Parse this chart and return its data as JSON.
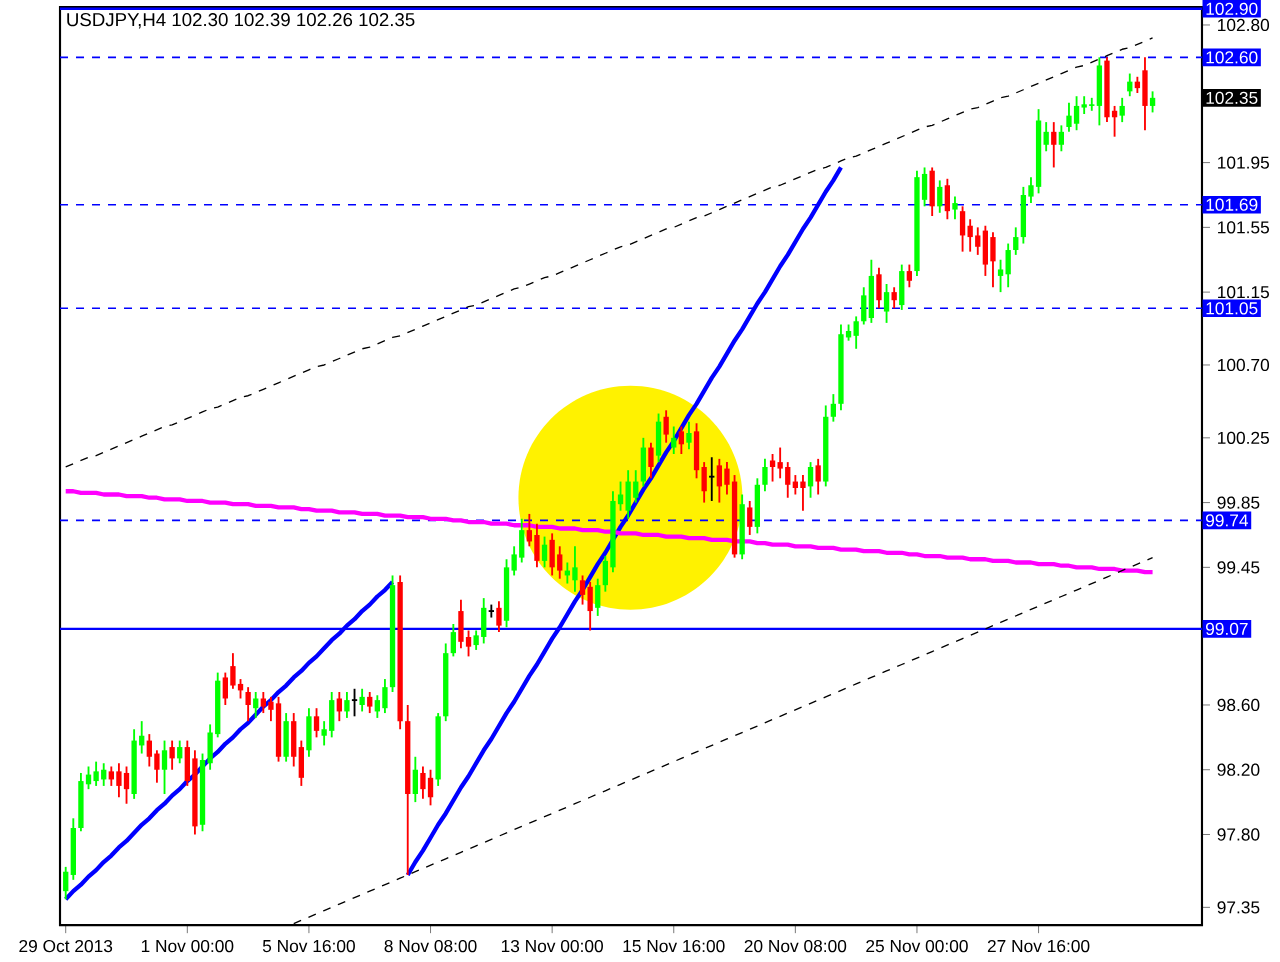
{
  "chart_data": {
    "type": "candlestick",
    "title": "USDJPY,H4 102.30 102.39 102.26 102.35",
    "ylim": [
      97.24,
      102.91
    ],
    "categories": [
      "29 Oct 2013",
      null,
      null,
      null,
      null,
      null,
      null,
      null,
      null,
      null,
      null,
      null,
      null,
      null,
      null,
      null,
      "1 Nov 00:00",
      null,
      null,
      null,
      null,
      null,
      null,
      null,
      null,
      null,
      null,
      null,
      null,
      null,
      null,
      null,
      "5 Nov 16:00",
      null,
      null,
      null,
      null,
      null,
      null,
      null,
      null,
      null,
      null,
      null,
      null,
      null,
      null,
      null,
      "8 Nov 08:00",
      null,
      null,
      null,
      null,
      null,
      null,
      null,
      null,
      null,
      null,
      null,
      null,
      null,
      null,
      null,
      "13 Nov 00:00",
      null,
      null,
      null,
      null,
      null,
      null,
      null,
      null,
      null,
      null,
      null,
      null,
      null,
      null,
      null,
      "15 Nov 16:00",
      null,
      null,
      null,
      null,
      null,
      null,
      null,
      null,
      null,
      null,
      null,
      null,
      null,
      null,
      null,
      "20 Nov 08:00",
      null,
      null,
      null,
      null,
      null,
      null,
      null,
      null,
      null,
      null,
      null,
      null,
      null,
      null,
      null,
      "25 Nov 00:00",
      null,
      null,
      null,
      null,
      null,
      null,
      null,
      null,
      null,
      null,
      null,
      null,
      null,
      null,
      null,
      "27 Nov 16:00",
      null,
      null,
      null,
      null,
      null,
      null,
      null,
      null,
      null,
      null,
      null,
      null,
      null,
      null,
      null
    ],
    "yticks": [
      97.35,
      {
        "value": 97.8,
        "label": "97.80"
      },
      {
        "value": 98.2,
        "label": "98.20"
      },
      {
        "value": 98.6,
        "label": "98.60"
      },
      99.45,
      99.85,
      100.25,
      {
        "value": 100.7,
        "label": "100.70"
      },
      101.15,
      101.55,
      101.95,
      {
        "value": 102.8,
        "label": "102.80"
      }
    ],
    "annotations": [
      "102.35"
    ],
    "ohlc": [
      [
        97.45,
        97.6,
        97.4,
        97.57
      ],
      [
        97.55,
        97.9,
        97.52,
        97.84
      ],
      [
        97.84,
        98.18,
        97.82,
        98.13
      ],
      [
        98.11,
        98.22,
        98.08,
        98.17
      ],
      [
        98.13,
        98.25,
        98.1,
        98.19
      ],
      [
        98.14,
        98.24,
        98.1,
        98.2
      ],
      [
        98.19,
        98.22,
        98.1,
        98.14
      ],
      [
        98.19,
        98.24,
        98.03,
        98.1
      ],
      [
        98.18,
        98.22,
        97.99,
        98.08
      ],
      [
        98.05,
        98.45,
        98.02,
        98.38
      ],
      [
        98.35,
        98.5,
        98.3,
        98.41
      ],
      [
        98.38,
        98.42,
        98.22,
        98.28
      ],
      [
        98.3,
        98.32,
        98.12,
        98.2
      ],
      [
        98.2,
        98.38,
        98.05,
        98.32
      ],
      [
        98.34,
        98.38,
        98.2,
        98.27
      ],
      [
        98.27,
        98.38,
        98.24,
        98.34
      ],
      [
        98.34,
        98.38,
        98.1,
        98.13
      ],
      [
        98.27,
        98.32,
        97.8,
        97.85
      ],
      [
        97.86,
        98.3,
        97.82,
        98.26
      ],
      [
        98.24,
        98.48,
        98.2,
        98.43
      ],
      [
        98.42,
        98.8,
        98.4,
        98.75
      ],
      [
        98.77,
        98.8,
        98.6,
        98.64
      ],
      [
        98.84,
        98.92,
        98.7,
        98.72
      ],
      [
        98.73,
        98.76,
        98.64,
        98.69
      ],
      [
        98.68,
        98.71,
        98.5,
        98.6
      ],
      [
        98.58,
        98.68,
        98.52,
        98.64
      ],
      [
        98.64,
        98.68,
        98.55,
        98.59
      ],
      [
        98.62,
        98.65,
        98.5,
        98.57
      ],
      [
        98.61,
        98.65,
        98.25,
        98.28
      ],
      [
        98.28,
        98.55,
        98.25,
        98.5
      ],
      [
        98.5,
        98.55,
        98.22,
        98.28
      ],
      [
        98.34,
        98.38,
        98.1,
        98.15
      ],
      [
        98.32,
        98.58,
        98.28,
        98.53
      ],
      [
        98.53,
        98.58,
        98.4,
        98.44
      ],
      [
        98.41,
        98.5,
        98.35,
        98.45
      ],
      [
        98.44,
        98.68,
        98.4,
        98.63
      ],
      [
        98.64,
        98.68,
        98.5,
        98.56
      ],
      [
        98.56,
        98.68,
        98.52,
        98.63
      ],
      [
        98.63,
        98.7,
        98.53,
        98.63
      ],
      [
        98.6,
        98.7,
        98.56,
        98.65
      ],
      [
        98.65,
        98.68,
        98.55,
        98.59
      ],
      [
        98.56,
        98.66,
        98.52,
        98.63
      ],
      [
        98.58,
        98.76,
        98.55,
        98.71
      ],
      [
        98.71,
        99.4,
        98.68,
        99.34
      ],
      [
        99.36,
        99.4,
        98.45,
        98.5
      ],
      [
        98.5,
        98.6,
        97.55,
        98.05
      ],
      [
        98.05,
        98.28,
        98.0,
        98.2
      ],
      [
        98.18,
        98.22,
        98.02,
        98.08
      ],
      [
        98.15,
        98.2,
        97.98,
        98.03
      ],
      [
        98.14,
        98.55,
        98.1,
        98.53
      ],
      [
        98.53,
        98.98,
        98.5,
        98.92
      ],
      [
        98.92,
        99.1,
        98.9,
        99.05
      ],
      [
        99.18,
        99.25,
        98.95,
        98.99
      ],
      [
        99.02,
        99.06,
        98.9,
        98.96
      ],
      [
        98.97,
        99.06,
        98.94,
        99.03
      ],
      [
        99.02,
        99.26,
        98.98,
        99.2
      ],
      [
        99.18,
        99.22,
        99.14,
        99.18
      ],
      [
        99.2,
        99.24,
        99.05,
        99.09
      ],
      [
        99.12,
        99.5,
        99.08,
        99.45
      ],
      [
        99.43,
        99.58,
        99.4,
        99.53
      ],
      [
        99.51,
        99.75,
        99.48,
        99.68
      ],
      [
        99.68,
        99.78,
        99.58,
        99.61
      ],
      [
        99.65,
        99.72,
        99.45,
        99.49
      ],
      [
        99.49,
        99.64,
        99.45,
        99.59
      ],
      [
        99.62,
        99.66,
        99.4,
        99.45
      ],
      [
        99.53,
        99.58,
        99.38,
        99.43
      ],
      [
        99.4,
        99.48,
        99.35,
        99.43
      ],
      [
        99.37,
        99.58,
        99.3,
        99.45
      ],
      [
        99.37,
        99.4,
        99.22,
        99.28
      ],
      [
        99.33,
        99.36,
        99.06,
        99.18
      ],
      [
        99.2,
        99.38,
        99.15,
        99.34
      ],
      [
        99.34,
        99.52,
        99.3,
        99.49
      ],
      [
        99.45,
        99.92,
        99.42,
        99.86
      ],
      [
        99.84,
        99.98,
        99.8,
        99.9
      ],
      [
        99.8,
        100.05,
        99.75,
        99.98
      ],
      [
        99.88,
        100.05,
        99.85,
        99.98
      ],
      [
        99.98,
        100.25,
        99.95,
        100.19
      ],
      [
        100.19,
        100.22,
        100.0,
        100.07
      ],
      [
        100.14,
        100.4,
        100.1,
        100.35
      ],
      [
        100.38,
        100.42,
        100.22,
        100.27
      ],
      [
        100.19,
        100.32,
        100.15,
        100.25
      ],
      [
        100.29,
        100.32,
        100.15,
        100.21
      ],
      [
        100.22,
        100.35,
        100.18,
        100.28
      ],
      [
        100.29,
        100.34,
        100.0,
        100.05
      ],
      [
        100.07,
        100.1,
        99.85,
        99.92
      ],
      [
        100.01,
        100.13,
        99.86,
        100.01
      ],
      [
        100.08,
        100.12,
        99.85,
        99.95
      ],
      [
        100.06,
        100.1,
        99.9,
        99.96
      ],
      [
        99.98,
        100.02,
        99.51,
        99.53
      ],
      [
        99.53,
        99.9,
        99.5,
        99.84
      ],
      [
        99.82,
        99.86,
        99.65,
        99.7
      ],
      [
        99.7,
        100.0,
        99.66,
        99.96
      ],
      [
        99.96,
        100.12,
        99.92,
        100.07
      ],
      [
        100.11,
        100.15,
        99.98,
        100.07
      ],
      [
        100.1,
        100.19,
        100.0,
        100.06
      ],
      [
        100.07,
        100.1,
        99.88,
        99.96
      ],
      [
        99.98,
        100.02,
        99.9,
        99.94
      ],
      [
        99.98,
        100.02,
        99.8,
        99.94
      ],
      [
        99.95,
        100.1,
        99.88,
        100.07
      ],
      [
        100.08,
        100.12,
        99.9,
        99.98
      ],
      [
        99.98,
        100.45,
        99.95,
        100.38
      ],
      [
        100.38,
        100.52,
        100.35,
        100.46
      ],
      [
        100.46,
        100.95,
        100.42,
        100.89
      ],
      [
        100.87,
        100.95,
        100.85,
        100.91
      ],
      [
        100.88,
        101.0,
        100.8,
        100.97
      ],
      [
        100.97,
        101.18,
        100.95,
        101.13
      ],
      [
        100.99,
        101.35,
        100.96,
        101.25
      ],
      [
        101.26,
        101.3,
        101.05,
        101.1
      ],
      [
        101.03,
        101.2,
        100.96,
        101.15
      ],
      [
        101.15,
        101.18,
        101.05,
        101.1
      ],
      [
        101.07,
        101.32,
        101.04,
        101.28
      ],
      [
        101.28,
        101.32,
        101.18,
        101.22
      ],
      [
        101.28,
        101.9,
        101.25,
        101.86
      ],
      [
        101.72,
        101.92,
        101.68,
        101.88
      ],
      [
        101.9,
        101.92,
        101.62,
        101.68
      ],
      [
        101.68,
        101.84,
        101.64,
        101.8
      ],
      [
        101.81,
        101.85,
        101.6,
        101.65
      ],
      [
        101.66,
        101.74,
        101.6,
        101.7
      ],
      [
        101.65,
        101.68,
        101.4,
        101.5
      ],
      [
        101.56,
        101.6,
        101.4,
        101.49
      ],
      [
        101.5,
        101.55,
        101.38,
        101.43
      ],
      [
        101.53,
        101.56,
        101.25,
        101.32
      ],
      [
        101.49,
        101.52,
        101.18,
        101.34
      ],
      [
        101.25,
        101.35,
        101.15,
        101.29
      ],
      [
        101.26,
        101.45,
        101.18,
        101.41
      ],
      [
        101.41,
        101.55,
        101.38,
        101.49
      ],
      [
        101.49,
        101.8,
        101.45,
        101.75
      ],
      [
        101.74,
        101.86,
        101.7,
        101.81
      ],
      [
        101.8,
        102.28,
        101.76,
        102.21
      ],
      [
        102.06,
        102.2,
        102.02,
        102.14
      ],
      [
        102.14,
        102.2,
        101.92,
        102.06
      ],
      [
        102.06,
        102.18,
        102.02,
        102.14
      ],
      [
        102.17,
        102.32,
        102.14,
        102.24
      ],
      [
        102.19,
        102.36,
        102.15,
        102.3
      ],
      [
        102.29,
        102.36,
        102.25,
        102.31
      ],
      [
        102.3,
        102.35,
        102.27,
        102.31
      ],
      [
        102.3,
        102.6,
        102.18,
        102.55
      ],
      [
        102.58,
        102.6,
        102.2,
        102.23
      ],
      [
        102.27,
        102.3,
        102.11,
        102.23
      ],
      [
        102.24,
        102.35,
        102.2,
        102.3
      ],
      [
        102.39,
        102.5,
        102.36,
        102.45
      ],
      [
        102.45,
        102.48,
        102.38,
        102.41
      ],
      [
        102.52,
        102.6,
        102.15,
        102.3
      ],
      [
        102.3,
        102.39,
        102.26,
        102.35
      ]
    ],
    "series": [
      {
        "type": "line",
        "color": "#0000ff",
        "line_style": "solid",
        "values": [
          97.4,
          97.45,
          97.49,
          97.54,
          97.58,
          97.63,
          97.67,
          97.72,
          97.76,
          97.81,
          97.86,
          97.9,
          97.95,
          97.99,
          98.04,
          98.08,
          98.13,
          98.17,
          98.22,
          98.27,
          98.31,
          98.36,
          98.4,
          98.45,
          98.49,
          98.54,
          98.59,
          98.63,
          98.68,
          98.72,
          98.77,
          98.81,
          98.86,
          98.9,
          98.95,
          99.0,
          99.04,
          99.09,
          99.13,
          99.18,
          99.22,
          99.27,
          99.31,
          99.36,
          null,
          null,
          null,
          null,
          null,
          null,
          null,
          null,
          null,
          null,
          null,
          null,
          null,
          null,
          null,
          null,
          null,
          null,
          null,
          null,
          null,
          null,
          null,
          null,
          null,
          null,
          null,
          null,
          null,
          null,
          null,
          null,
          null,
          null,
          null,
          null,
          null,
          null,
          null,
          null,
          null,
          null,
          null,
          null,
          null,
          null,
          null,
          null,
          null,
          null,
          null,
          null,
          null,
          null,
          null,
          null,
          null,
          null,
          null,
          null,
          null,
          null,
          null,
          null,
          null,
          null,
          null,
          null,
          null,
          null,
          null,
          null,
          null,
          null,
          null,
          null,
          null,
          null,
          null,
          null,
          null,
          null,
          null,
          null,
          null,
          null,
          null,
          null,
          null,
          null,
          null,
          null,
          null,
          null,
          null,
          null,
          null,
          null,
          null,
          null
        ]
      },
      {
        "type": "line",
        "color": "#0000ff",
        "line_style": "solid",
        "values": [
          null,
          null,
          null,
          null,
          null,
          null,
          null,
          null,
          null,
          null,
          null,
          null,
          null,
          null,
          null,
          null,
          null,
          null,
          null,
          null,
          null,
          null,
          null,
          null,
          null,
          null,
          null,
          null,
          null,
          null,
          null,
          null,
          null,
          null,
          null,
          null,
          null,
          null,
          null,
          null,
          null,
          null,
          null,
          null,
          null,
          97.55,
          97.63,
          97.7,
          97.78,
          97.86,
          97.93,
          98.01,
          98.09,
          98.16,
          98.24,
          98.32,
          98.39,
          98.47,
          98.55,
          98.62,
          98.7,
          98.78,
          98.85,
          98.93,
          99.01,
          99.08,
          99.16,
          99.24,
          99.31,
          99.39,
          99.47,
          99.54,
          99.62,
          99.7,
          99.77,
          99.85,
          99.93,
          100.0,
          100.08,
          100.16,
          100.23,
          100.31,
          100.39,
          100.46,
          100.54,
          100.62,
          100.69,
          100.77,
          100.85,
          100.92,
          101.0,
          101.08,
          101.15,
          101.23,
          101.31,
          101.38,
          101.46,
          101.54,
          101.61,
          101.69,
          101.77,
          101.84,
          101.92,
          null,
          null,
          null,
          null,
          null,
          null,
          null,
          null,
          null,
          null,
          null,
          null,
          null,
          null,
          null,
          null,
          null,
          null,
          null,
          null,
          null,
          null,
          null,
          null,
          null,
          null,
          null,
          null,
          null,
          null,
          null,
          null,
          null,
          null,
          null,
          null,
          null,
          null,
          null,
          null,
          null
        ]
      },
      {
        "type": "line",
        "color": "#ff00ff",
        "line_style": "solid",
        "values": [
          99.92,
          99.92,
          99.91,
          99.91,
          99.91,
          99.9,
          99.9,
          99.9,
          99.89,
          99.89,
          99.89,
          99.88,
          99.88,
          99.87,
          99.87,
          99.87,
          99.86,
          99.86,
          99.86,
          99.85,
          99.85,
          99.85,
          99.84,
          99.84,
          99.84,
          99.83,
          99.83,
          99.83,
          99.82,
          99.82,
          99.82,
          99.81,
          99.81,
          99.8,
          99.8,
          99.8,
          99.79,
          99.79,
          99.79,
          99.78,
          99.78,
          99.78,
          99.77,
          99.77,
          99.77,
          99.76,
          99.76,
          99.76,
          99.75,
          99.75,
          99.75,
          99.74,
          99.74,
          99.73,
          99.73,
          99.73,
          99.72,
          99.72,
          99.72,
          99.71,
          99.71,
          99.71,
          99.7,
          99.7,
          99.7,
          99.69,
          99.69,
          99.69,
          99.68,
          99.68,
          99.68,
          99.67,
          99.67,
          99.66,
          99.66,
          99.66,
          99.65,
          99.65,
          99.65,
          99.64,
          99.64,
          99.64,
          99.63,
          99.63,
          99.63,
          99.62,
          99.62,
          99.62,
          99.61,
          99.61,
          99.61,
          99.6,
          99.6,
          99.59,
          99.59,
          99.59,
          99.58,
          99.58,
          99.58,
          99.57,
          99.57,
          99.57,
          99.56,
          99.56,
          99.56,
          99.55,
          99.55,
          99.55,
          99.54,
          99.54,
          99.54,
          99.53,
          99.53,
          99.52,
          99.52,
          99.52,
          99.51,
          99.51,
          99.51,
          99.5,
          99.5,
          99.5,
          99.49,
          99.49,
          99.49,
          99.48,
          99.48,
          99.48,
          99.47,
          99.47,
          99.47,
          99.46,
          99.46,
          99.45,
          99.45,
          99.45,
          99.44,
          99.44,
          99.44,
          99.43,
          99.43,
          99.43,
          99.42,
          99.42
        ]
      },
      {
        "type": "line",
        "color": "#000000",
        "line_style": "dashed",
        "values": [
          null,
          null,
          null,
          null,
          null,
          null,
          null,
          null,
          null,
          null,
          null,
          null,
          null,
          null,
          null,
          null,
          null,
          null,
          null,
          null,
          null,
          null,
          null,
          null,
          null,
          null,
          null,
          null,
          null,
          null,
          97.25,
          97.27,
          97.29,
          97.31,
          97.33,
          97.35,
          97.37,
          97.39,
          97.41,
          97.43,
          97.45,
          97.47,
          97.49,
          97.51,
          97.53,
          97.55,
          97.57,
          97.59,
          97.61,
          97.63,
          97.65,
          97.67,
          97.69,
          97.71,
          97.73,
          97.75,
          97.77,
          97.79,
          97.81,
          97.83,
          97.85,
          97.87,
          97.89,
          97.91,
          97.93,
          97.95,
          97.97,
          97.99,
          98.01,
          98.03,
          98.05,
          98.07,
          98.09,
          98.11,
          98.13,
          98.15,
          98.17,
          98.19,
          98.21,
          98.23,
          98.25,
          98.27,
          98.29,
          98.31,
          98.33,
          98.35,
          98.37,
          98.39,
          98.41,
          98.43,
          98.45,
          98.47,
          98.49,
          98.51,
          98.53,
          98.55,
          98.57,
          98.59,
          98.61,
          98.63,
          98.65,
          98.67,
          98.69,
          98.71,
          98.73,
          98.75,
          98.77,
          98.79,
          98.81,
          98.83,
          98.85,
          98.87,
          98.89,
          98.91,
          98.93,
          98.95,
          98.97,
          98.99,
          99.01,
          99.03,
          99.05,
          99.07,
          99.09,
          99.11,
          99.13,
          99.15,
          99.17,
          99.19,
          99.21,
          99.23,
          99.25,
          99.27,
          99.29,
          99.31,
          99.33,
          99.35,
          99.37,
          99.39,
          99.41,
          99.43,
          99.45,
          99.47,
          99.49,
          99.51
        ]
      },
      {
        "type": "line",
        "color": "#000000",
        "line_style": "dashed",
        "values": [
          100.07,
          100.09,
          100.11,
          100.13,
          100.14,
          100.16,
          100.18,
          100.2,
          100.22,
          100.24,
          100.26,
          100.28,
          100.3,
          100.32,
          100.33,
          100.35,
          100.37,
          100.39,
          100.41,
          100.43,
          100.44,
          100.46,
          100.48,
          100.5,
          100.51,
          100.53,
          100.55,
          100.57,
          100.59,
          100.61,
          100.63,
          100.65,
          100.67,
          100.69,
          100.7,
          100.72,
          100.74,
          100.76,
          100.78,
          100.8,
          100.81,
          100.83,
          100.85,
          100.87,
          100.88,
          100.9,
          100.92,
          100.94,
          100.96,
          100.98,
          101.0,
          101.02,
          101.04,
          101.06,
          101.07,
          101.09,
          101.11,
          101.13,
          101.15,
          101.17,
          101.18,
          101.2,
          101.22,
          101.24,
          101.25,
          101.27,
          101.29,
          101.31,
          101.33,
          101.35,
          101.37,
          101.39,
          101.41,
          101.43,
          101.44,
          101.46,
          101.48,
          101.5,
          101.52,
          101.54,
          101.55,
          101.57,
          101.59,
          101.61,
          101.62,
          101.64,
          101.66,
          101.68,
          101.7,
          101.72,
          101.74,
          101.76,
          101.78,
          101.8,
          101.81,
          101.83,
          101.85,
          101.87,
          101.89,
          101.91,
          101.92,
          101.94,
          101.96,
          101.98,
          101.99,
          102.01,
          102.03,
          102.05,
          102.07,
          102.09,
          102.11,
          102.13,
          102.15,
          102.17,
          102.18,
          102.2,
          102.22,
          102.24,
          102.26,
          102.28,
          102.29,
          102.31,
          102.33,
          102.35,
          102.36,
          102.38,
          102.4,
          102.42,
          102.44,
          102.46,
          102.48,
          102.5,
          102.52,
          102.54,
          102.55,
          102.57,
          102.59,
          102.61,
          102.63,
          102.65,
          102.66,
          102.68,
          102.7,
          102.72
        ]
      }
    ],
    "ref_lines": [
      {
        "axis": "y",
        "value": 102.9,
        "label": "102.90",
        "color": "#0000ff",
        "line_style": "solid"
      },
      {
        "axis": "y",
        "value": 102.6,
        "label": "102.60",
        "color": "#0000ff",
        "line_style": "dashed"
      },
      {
        "axis": "y",
        "value": 101.69,
        "label": "101.69",
        "color": "#0000ff",
        "line_style": "dashed"
      },
      {
        "axis": "y",
        "value": 101.05,
        "label": "101.05",
        "color": "#0000ff",
        "line_style": "dashed"
      },
      {
        "axis": "y",
        "value": 99.74,
        "label": "99.74",
        "color": "#0000ff",
        "line_style": "dashed"
      },
      {
        "axis": "y",
        "value": 99.07,
        "label": "99.07",
        "color": "#0000ff",
        "line_style": "solid"
      }
    ]
  }
}
